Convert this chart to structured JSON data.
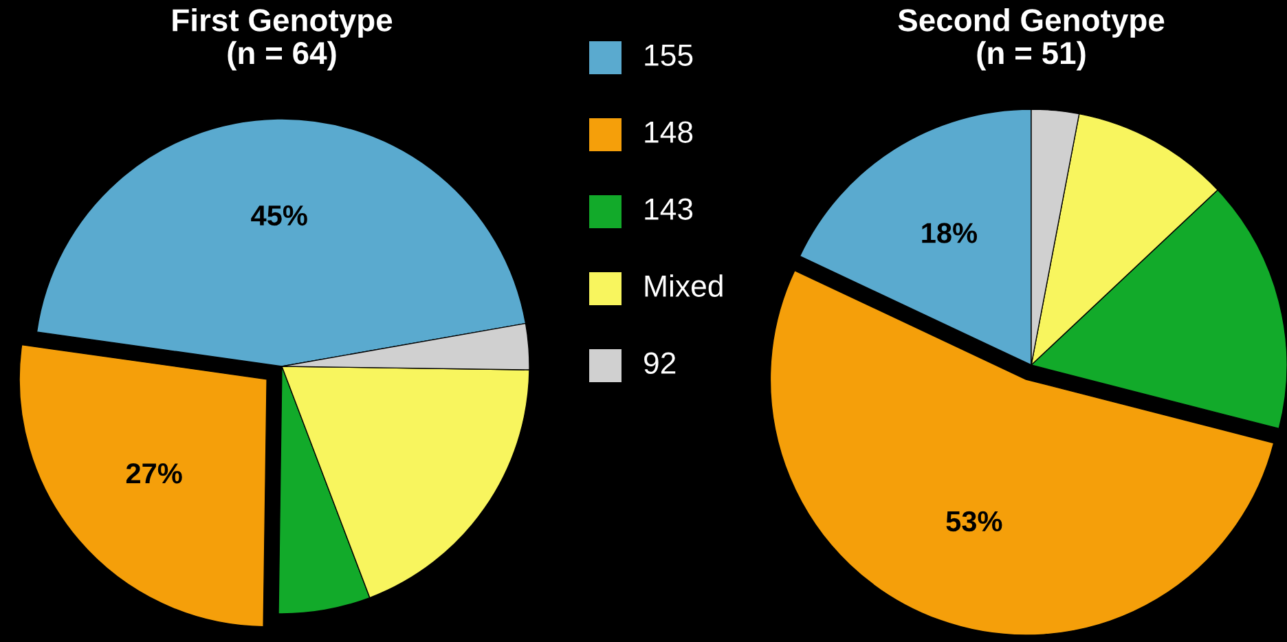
{
  "chart_data": [
    {
      "type": "pie",
      "title": "First Genotype\n(n = 64)",
      "categories": [
        "155",
        "148",
        "143",
        "Mixed",
        "92"
      ],
      "values": [
        45,
        27,
        6,
        19,
        3
      ],
      "colors": [
        "#5aaacf",
        "#f59f0a",
        "#12aa2a",
        "#f8f55e",
        "#d0d0d0"
      ],
      "value_labels": [
        "45%",
        "27%",
        null,
        null,
        null
      ],
      "legend": "right"
    },
    {
      "type": "pie",
      "title": "Second Genotype\n(n = 51)",
      "values": [
        18,
        53,
        16,
        10,
        3
      ],
      "colors": [
        "#5aaacf",
        "#f59f0a",
        "#12aa2a",
        "#f8f55e",
        "#d0d0d0"
      ],
      "value_labels": [
        "18%",
        "53%",
        null,
        null,
        null
      ]
    }
  ]
}
